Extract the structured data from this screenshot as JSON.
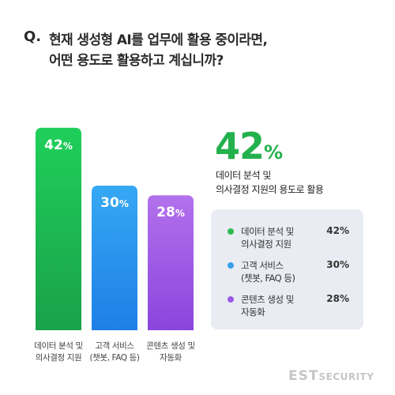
{
  "question": {
    "mark": "Q.",
    "line1": "현재 생성형 AI를 업무에 활용 중이라면,",
    "line2": "어떤 용도로 활용하고 계십니까?"
  },
  "chart_data": {
    "type": "bar",
    "categories": [
      [
        "데이터 분석 및",
        "의사결정 지원"
      ],
      [
        "고객 서비스",
        "(챗봇, FAQ 등)"
      ],
      [
        "콘텐츠 생성 및",
        "자동화"
      ]
    ],
    "values": [
      42,
      30,
      28
    ],
    "value_unit": "%",
    "colors": [
      [
        "#1fcf5a",
        "#1aa14a"
      ],
      [
        "#36a8f4",
        "#1e7fe6"
      ],
      [
        "#b271ec",
        "#8a45dc"
      ]
    ]
  },
  "highlight": {
    "value": "42",
    "unit": "%",
    "desc_line1": "데이터 분석 및",
    "desc_line2": "의사결정 지원의 용도로 활용",
    "color": "#23b14d"
  },
  "legend": [
    {
      "label_line1": "데이터 분석 및",
      "label_line2": "의사결정 지원",
      "value": "42%",
      "color": "#2dbb52"
    },
    {
      "label_line1": "고객 서비스",
      "label_line2": "(챗봇, FAQ 등)",
      "value": "30%",
      "color": "#3aa0ec"
    },
    {
      "label_line1": "콘텐츠 생성 및",
      "label_line2": "자동화",
      "value": "28%",
      "color": "#9b59e6"
    }
  ],
  "logo": {
    "main": "EST",
    "sub": "SECURITY"
  }
}
